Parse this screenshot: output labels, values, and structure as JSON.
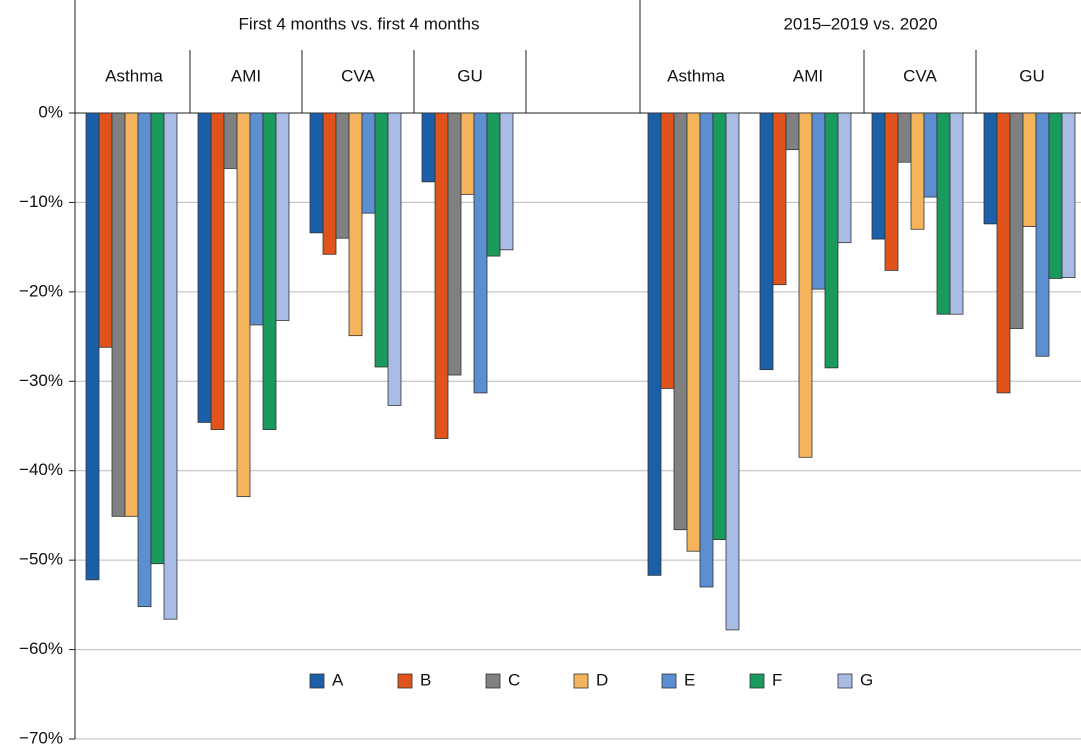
{
  "chart_data": {
    "type": "bar",
    "panels": [
      {
        "title": "First 4 months vs. first 4 months",
        "categories": [
          "Asthma",
          "AMI",
          "CVA",
          "GU"
        ]
      },
      {
        "title": "2015–2019 vs. 2020",
        "categories": [
          "Asthma",
          "AMI",
          "CVA",
          "GU"
        ]
      }
    ],
    "series": [
      {
        "name": "A",
        "color": "#1a5fa8",
        "values": [
          -52.2,
          -34.6,
          -13.4,
          -7.7,
          -51.7,
          -28.7,
          -14.1,
          -12.4
        ]
      },
      {
        "name": "B",
        "color": "#e0531c",
        "values": [
          -26.2,
          -35.4,
          -15.8,
          -36.4,
          -30.8,
          -19.2,
          -17.6,
          -31.3
        ]
      },
      {
        "name": "C",
        "color": "#808080",
        "values": [
          -45.1,
          -6.2,
          -14.0,
          -29.3,
          -46.6,
          -4.1,
          -5.5,
          -24.1
        ]
      },
      {
        "name": "D",
        "color": "#f5b35c",
        "values": [
          -45.1,
          -42.9,
          -24.9,
          -9.1,
          -49.0,
          -38.5,
          -13.0,
          -12.7
        ]
      },
      {
        "name": "E",
        "color": "#5b8fd0",
        "values": [
          -55.2,
          -23.7,
          -11.2,
          -31.3,
          -53.0,
          -19.7,
          -9.4,
          -27.2
        ]
      },
      {
        "name": "F",
        "color": "#1a9a5c",
        "values": [
          -50.4,
          -35.4,
          -28.4,
          -16.0,
          -47.7,
          -28.5,
          -22.5,
          -18.5
        ]
      },
      {
        "name": "G",
        "color": "#a8bce6",
        "values": [
          -56.6,
          -23.2,
          -32.7,
          -15.3,
          -57.8,
          -14.5,
          -22.5,
          -18.4
        ]
      }
    ],
    "ylim": [
      -70,
      0
    ],
    "yticks": [
      {
        "value": 0,
        "label": "0%"
      },
      {
        "value": -10,
        "label": "−10%"
      },
      {
        "value": -20,
        "label": "−20%"
      },
      {
        "value": -30,
        "label": "−30%"
      },
      {
        "value": -40,
        "label": "−40%"
      },
      {
        "value": -50,
        "label": "−50%"
      },
      {
        "value": -60,
        "label": "−60%"
      },
      {
        "value": -70,
        "label": "−70%"
      }
    ],
    "grid": true
  }
}
